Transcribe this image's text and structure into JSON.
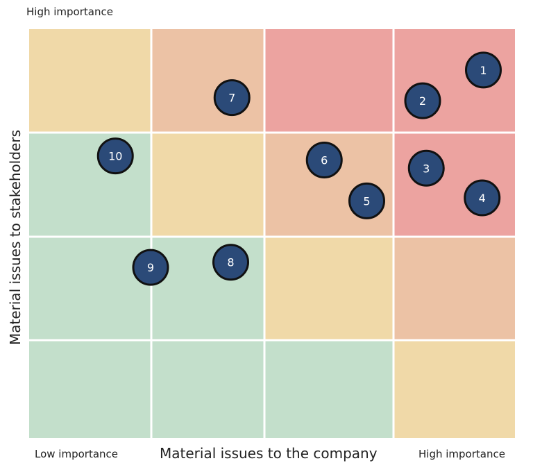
{
  "chart_data": {
    "type": "scatter",
    "title": "",
    "ylabel": "Material issues to stakeholders",
    "xlabel": "Material issues to the company",
    "top_label": "High importance",
    "x_low_label": "Low importance",
    "x_high_label": "High importance",
    "grid": {
      "columns": 4,
      "rows": 4,
      "cells": [
        [
          "yellow",
          "orange",
          "red",
          "red"
        ],
        [
          "green",
          "yellow",
          "orange",
          "red"
        ],
        [
          "green",
          "green",
          "yellow",
          "orange"
        ],
        [
          "green",
          "green",
          "green",
          "yellow"
        ]
      ]
    },
    "colors": {
      "yellow": "#f0d9a8",
      "orange": "#ecc2a5",
      "red": "#eca3a0",
      "green": "#c3dfcb",
      "marker_fill": "#2b4a78",
      "marker_stroke": "#111111",
      "marker_text": "#ffffff",
      "gridline": "#ffffff"
    },
    "xlim": [
      0,
      4
    ],
    "ylim": [
      0,
      4
    ],
    "points": [
      {
        "label": "1",
        "x": 3.74,
        "y": 3.6
      },
      {
        "label": "2",
        "x": 3.24,
        "y": 3.3
      },
      {
        "label": "3",
        "x": 3.27,
        "y": 2.64
      },
      {
        "label": "4",
        "x": 3.73,
        "y": 2.35
      },
      {
        "label": "5",
        "x": 2.78,
        "y": 2.32
      },
      {
        "label": "6",
        "x": 2.43,
        "y": 2.72
      },
      {
        "label": "7",
        "x": 1.67,
        "y": 3.33
      },
      {
        "label": "8",
        "x": 1.66,
        "y": 1.72
      },
      {
        "label": "9",
        "x": 1.0,
        "y": 1.67
      },
      {
        "label": "10",
        "x": 0.71,
        "y": 2.76
      }
    ]
  }
}
